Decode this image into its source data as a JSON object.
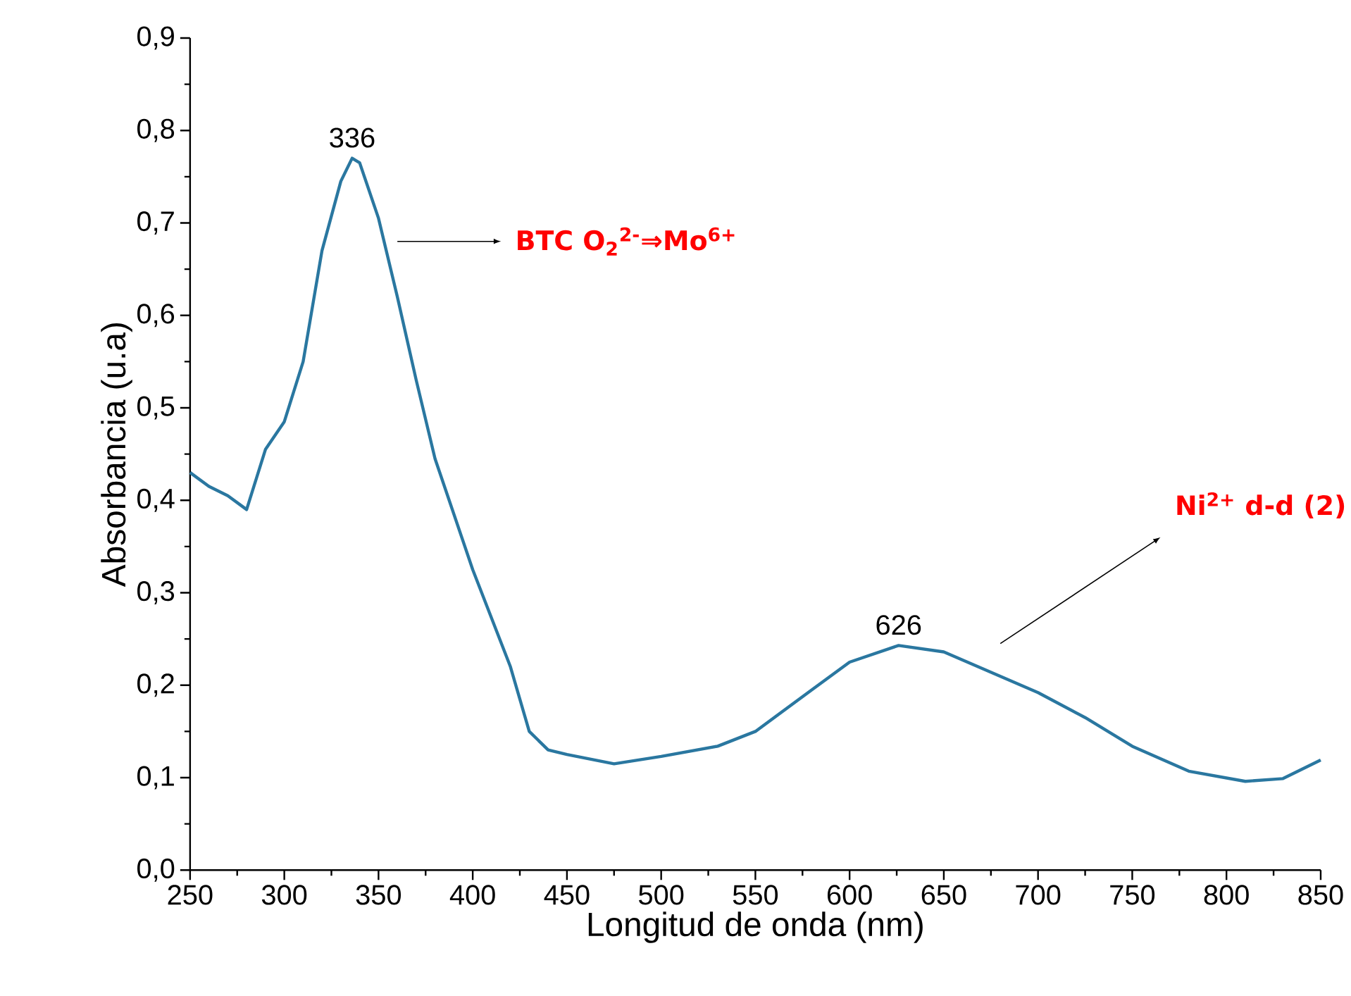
{
  "chart_data": {
    "type": "line",
    "xlabel": "Longitud de onda (nm)",
    "ylabel": "Absorbancia (u.a)",
    "xlim": [
      250,
      850
    ],
    "ylim": [
      0,
      0.9
    ],
    "xticks": [
      250,
      300,
      350,
      400,
      450,
      500,
      550,
      600,
      650,
      700,
      750,
      800,
      850
    ],
    "yticks": [
      {
        "value": 0,
        "label": "0,0"
      },
      {
        "value": 0.1,
        "label": "0,1"
      },
      {
        "value": 0.2,
        "label": "0,2"
      },
      {
        "value": 0.3,
        "label": "0,3"
      },
      {
        "value": 0.4,
        "label": "0,4"
      },
      {
        "value": 0.5,
        "label": "0,5"
      },
      {
        "value": 0.6,
        "label": "0,6"
      },
      {
        "value": 0.7,
        "label": "0,7"
      },
      {
        "value": 0.8,
        "label": "0,8"
      },
      {
        "value": 0.9,
        "label": "0,9"
      }
    ],
    "grid": false,
    "marker": "none",
    "line_style": "solid",
    "x": [
      250,
      260,
      270,
      280,
      290,
      300,
      310,
      320,
      330,
      336,
      340,
      350,
      360,
      370,
      380,
      400,
      420,
      430,
      440,
      450,
      475,
      500,
      530,
      550,
      580,
      600,
      626,
      650,
      700,
      725,
      750,
      780,
      810,
      830,
      850
    ],
    "series": [
      {
        "color": "#2a77a0",
        "values": [
          0.43,
          0.415,
          0.405,
          0.39,
          0.455,
          0.485,
          0.55,
          0.67,
          0.745,
          0.77,
          0.765,
          0.705,
          0.62,
          0.53,
          0.445,
          0.325,
          0.22,
          0.15,
          0.13,
          0.125,
          0.115,
          0.123,
          0.134,
          0.15,
          0.195,
          0.225,
          0.243,
          0.236,
          0.192,
          0.165,
          0.134,
          0.107,
          0.096,
          0.099,
          0.119
        ]
      }
    ],
    "annotations": [
      {
        "text": "336",
        "x": 336,
        "y": 0.77
      },
      {
        "text": "626",
        "x": 626,
        "y": 0.243
      },
      "BTC O$_{2}$$^{2-}$⇒Mo$^{6+}$",
      "Ni$^{2+}$ d-d (2)"
    ]
  }
}
